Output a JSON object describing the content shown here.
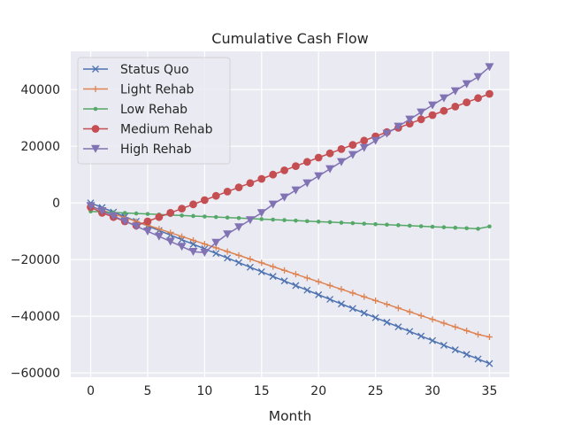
{
  "chart_data": {
    "type": "line",
    "title": "Cumulative Cash Flow",
    "xlabel": "Month",
    "ylabel": "",
    "xlim": [
      -1.75,
      36.75
    ],
    "ylim": [
      -61500,
      53500
    ],
    "xticks": [
      0,
      5,
      10,
      15,
      20,
      25,
      30,
      35
    ],
    "yticks": [
      -60000,
      -40000,
      -20000,
      0,
      20000,
      40000
    ],
    "ytick_labels": [
      "−60000",
      "−40000",
      "−20000",
      "0",
      "20000",
      "40000"
    ],
    "grid": true,
    "legend_position": "upper-left",
    "x": [
      0,
      1,
      2,
      3,
      4,
      5,
      6,
      7,
      8,
      9,
      10,
      11,
      12,
      13,
      14,
      15,
      16,
      17,
      18,
      19,
      20,
      21,
      22,
      23,
      24,
      25,
      26,
      27,
      28,
      29,
      30,
      31,
      32,
      33,
      34,
      35
    ],
    "series": [
      {
        "name": "Status Quo",
        "color": "#4c72b0",
        "marker": "x",
        "values": [
          0,
          -1620,
          -3240,
          -4860,
          -6480,
          -8100,
          -9720,
          -11340,
          -12960,
          -14580,
          -16200,
          -17820,
          -19440,
          -21060,
          -22680,
          -24300,
          -25920,
          -27540,
          -29160,
          -30780,
          -32400,
          -34020,
          -35640,
          -37260,
          -38880,
          -40500,
          -42120,
          -43740,
          -45360,
          -46980,
          -48600,
          -50220,
          -51840,
          -53460,
          -55080,
          -56700
        ]
      },
      {
        "name": "Light Rehab",
        "color": "#dd8452",
        "marker": "plus",
        "values": [
          -1200,
          -2530,
          -3860,
          -5190,
          -6520,
          -7850,
          -9180,
          -10510,
          -11840,
          -13170,
          -14500,
          -15830,
          -17160,
          -18490,
          -19820,
          -21150,
          -22480,
          -23810,
          -25140,
          -26470,
          -27800,
          -29130,
          -30460,
          -31790,
          -33120,
          -34450,
          -35780,
          -37110,
          -38440,
          -39770,
          -41100,
          -42430,
          -43760,
          -45090,
          -46420,
          -47300
        ]
      },
      {
        "name": "Low Rehab",
        "color": "#55a868",
        "marker": "dot",
        "values": [
          -3000,
          -3180,
          -3360,
          -3540,
          -3720,
          -3900,
          -4080,
          -4260,
          -4440,
          -4620,
          -4800,
          -4980,
          -5160,
          -5340,
          -5520,
          -5700,
          -5880,
          -6060,
          -6240,
          -6420,
          -6600,
          -6780,
          -6960,
          -7140,
          -7320,
          -7500,
          -7680,
          -7860,
          -8040,
          -8220,
          -8400,
          -8580,
          -8760,
          -8940,
          -9120,
          -8300
        ]
      },
      {
        "name": "Medium Rehab",
        "color": "#c44e52",
        "marker": "circle",
        "values": [
          -1500,
          -3500,
          -5000,
          -6500,
          -8000,
          -6500,
          -5000,
          -3500,
          -2000,
          -500,
          1000,
          2500,
          4000,
          5500,
          7000,
          8500,
          10000,
          11500,
          13000,
          14500,
          16000,
          17500,
          19000,
          20500,
          22000,
          23500,
          25000,
          26500,
          28000,
          29500,
          31000,
          32500,
          34000,
          35500,
          37000,
          38500
        ]
      },
      {
        "name": "High Rehab",
        "color": "#8172b3",
        "marker": "triangle-down",
        "values": [
          -1000,
          -2800,
          -4600,
          -6400,
          -8200,
          -10000,
          -11800,
          -13600,
          -15400,
          -17200,
          -17500,
          -14000,
          -11000,
          -8500,
          -6000,
          -3500,
          -500,
          2000,
          4500,
          7000,
          9500,
          12000,
          14500,
          17000,
          19500,
          22000,
          24500,
          27000,
          29500,
          32000,
          34500,
          37000,
          39500,
          42000,
          44500,
          48000
        ]
      }
    ]
  }
}
